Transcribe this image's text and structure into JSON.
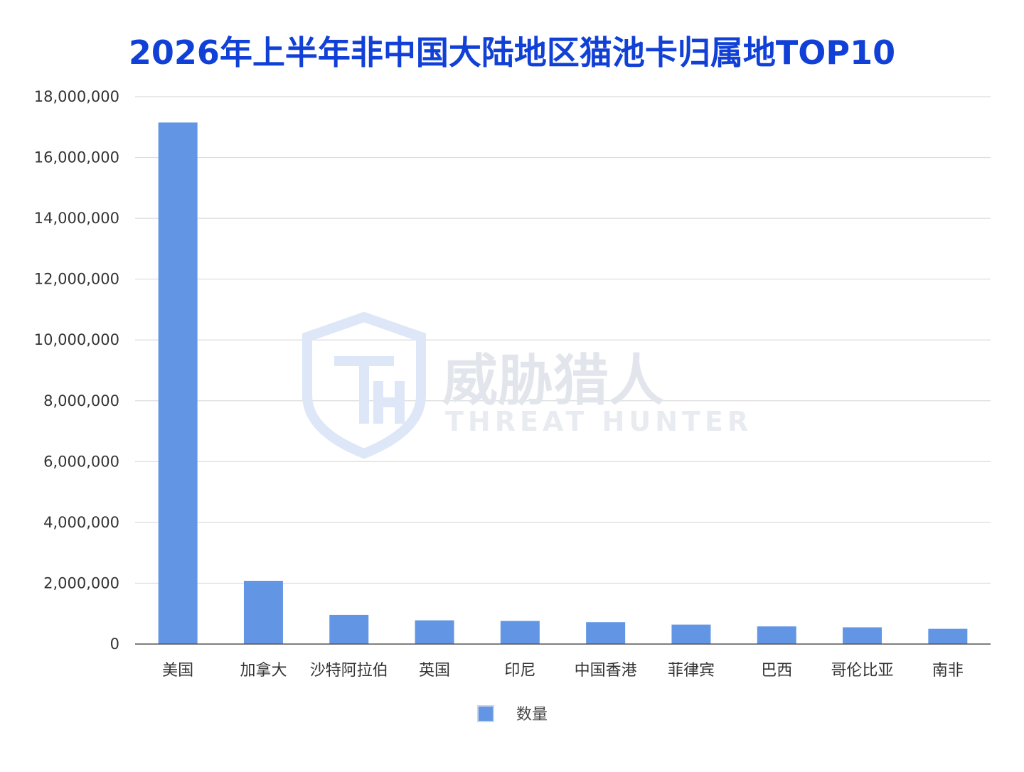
{
  "chart_data": {
    "type": "bar",
    "title": "2026年上半年非中国大陆地区猫池卡归属地TOP10",
    "xlabel": "",
    "ylabel": "",
    "categories": [
      "美国",
      "加拿大",
      "沙特阿拉伯",
      "英国",
      "印尼",
      "中国香港",
      "菲律宾",
      "巴西",
      "哥伦比亚",
      "南非"
    ],
    "series": [
      {
        "name": "数量",
        "color": "#6296e4",
        "values": [
          17150000,
          2080000,
          960000,
          780000,
          760000,
          720000,
          640000,
          580000,
          550000,
          500000
        ]
      }
    ],
    "ylim": [
      0,
      18000000
    ],
    "yticks": [
      0,
      2000000,
      4000000,
      6000000,
      8000000,
      10000000,
      12000000,
      14000000,
      16000000,
      18000000
    ],
    "ytick_labels": [
      "0",
      "2,000,000",
      "4,000,000",
      "6,000,000",
      "8,000,000",
      "10,000,000",
      "12,000,000",
      "14,000,000",
      "16,000,000",
      "18,000,000"
    ],
    "grid": true,
    "legend_position": "bottom",
    "title_color": "#1140d6"
  },
  "watermark": {
    "logo_icon": "shield-th-logo-icon",
    "text_cn": "威胁猎人",
    "text_en": "THREAT HUNTER"
  }
}
